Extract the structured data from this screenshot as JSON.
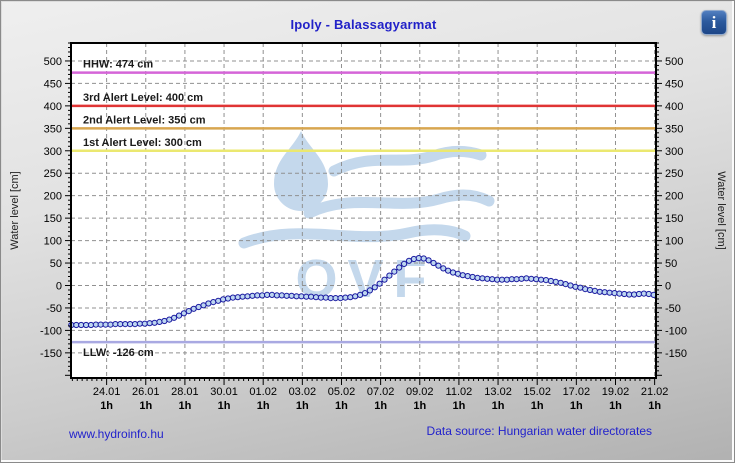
{
  "window": {
    "title": "Ipoly - Balassagyarmat"
  },
  "info_icon": {
    "glyph": "i"
  },
  "footer": {
    "site_link": "www.hydroinfo.hu",
    "data_source": "Data source: Hungarian water directorates"
  },
  "chart_data": {
    "type": "line",
    "title": "Ipoly - Balassagyarmat",
    "ylabel_left": "Water level [cm]",
    "ylabel_right": "Water level [cm]",
    "unit": "cm",
    "ylim": [
      -206,
      540
    ],
    "y_tick_values": [
      500,
      450,
      400,
      350,
      300,
      250,
      200,
      150,
      100,
      50,
      0,
      -50,
      -100,
      -150
    ],
    "y_minor_step": 10,
    "grid": {
      "style": "dashed",
      "color": "#909090"
    },
    "x_axis": {
      "xlim_days": [
        -1.82,
        28.07
      ],
      "minor_step_days": 0.25,
      "sublabel": "1h",
      "tick_labels": [
        {
          "day": 0,
          "label": "24.01"
        },
        {
          "day": 2,
          "label": "26.01"
        },
        {
          "day": 4,
          "label": "28.01"
        },
        {
          "day": 6,
          "label": "30.01"
        },
        {
          "day": 8,
          "label": "01.02"
        },
        {
          "day": 10,
          "label": "03.02"
        },
        {
          "day": 12,
          "label": "05.02"
        },
        {
          "day": 14,
          "label": "07.02"
        },
        {
          "day": 16,
          "label": "09.02"
        },
        {
          "day": 18,
          "label": "11.02"
        },
        {
          "day": 20,
          "label": "13.02"
        },
        {
          "day": 22,
          "label": "15.02"
        },
        {
          "day": 24,
          "label": "17.02"
        },
        {
          "day": 26,
          "label": "19.02"
        },
        {
          "day": 28,
          "label": "21.02"
        }
      ]
    },
    "reference_lines": [
      {
        "name": "hhw",
        "label": "HHW: 474 cm",
        "value": 474,
        "color": "#d565d8",
        "label_position": "above"
      },
      {
        "name": "alert3",
        "label": "3rd Alert Level: 400 cm",
        "value": 400,
        "color": "#e03434",
        "label_position": "above"
      },
      {
        "name": "alert2",
        "label": "2nd Alert Level: 350 cm",
        "value": 350,
        "color": "#d8a650",
        "label_position": "above"
      },
      {
        "name": "alert1",
        "label": "1st Alert Level: 300 cm",
        "value": 300,
        "color": "#ebe870",
        "label_position": "above"
      },
      {
        "name": "llw",
        "label": "LLW: -126 cm",
        "value": -126,
        "color": "#a9a9e2",
        "label_position": "below"
      }
    ],
    "series": [
      {
        "name": "water-level",
        "marker": "circle",
        "line_color": "#1a1aa0",
        "marker_fill": "#bdd6f0",
        "start_day": -1.8,
        "step_days": 0.25,
        "values": [
          -88,
          -88,
          -88,
          -88,
          -88,
          -87,
          -87,
          -87,
          -87,
          -86,
          -86,
          -86,
          -86,
          -86,
          -85,
          -85,
          -84,
          -83,
          -81,
          -79,
          -76,
          -72,
          -67,
          -62,
          -57,
          -52,
          -48,
          -44,
          -40,
          -37,
          -34,
          -31,
          -29,
          -27,
          -26,
          -25,
          -24,
          -23,
          -22,
          -22,
          -21,
          -21,
          -22,
          -22,
          -23,
          -23,
          -24,
          -24,
          -25,
          -25,
          -26,
          -27,
          -27,
          -28,
          -28,
          -28,
          -27,
          -26,
          -24,
          -21,
          -17,
          -11,
          -4,
          4,
          13,
          22,
          31,
          40,
          48,
          55,
          59,
          61,
          60,
          56,
          50,
          44,
          38,
          33,
          29,
          26,
          23,
          21,
          19,
          17,
          16,
          15,
          14,
          13,
          13,
          13,
          14,
          14,
          15,
          16,
          15,
          14,
          13,
          12,
          10,
          8,
          6,
          3,
          0,
          -3,
          -5,
          -8,
          -10,
          -12,
          -14,
          -15,
          -16,
          -17,
          -18,
          -19,
          -20,
          -20,
          -19,
          -18,
          -19,
          -21
        ]
      }
    ],
    "watermark": {
      "text": "OVF",
      "color": "#c4d8ec"
    }
  }
}
